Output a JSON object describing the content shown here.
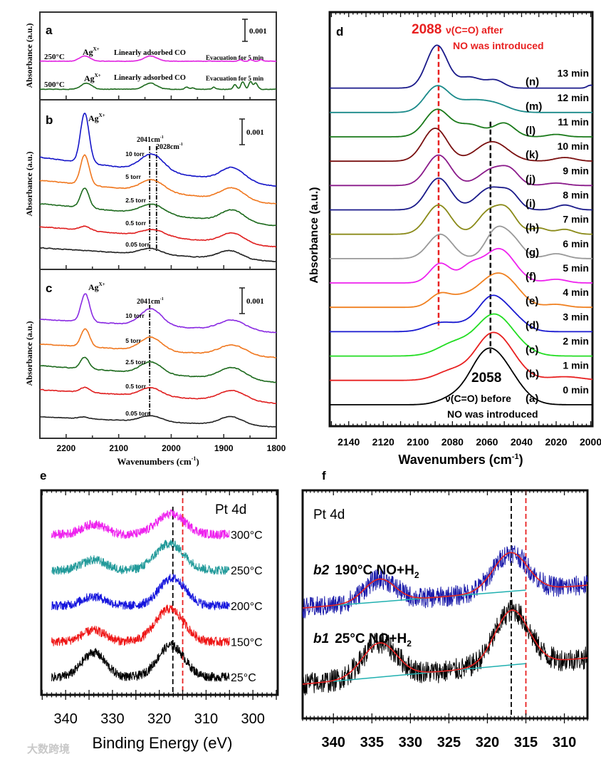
{
  "watermark": "大数跨境",
  "chart_data": [
    {
      "panel": "a",
      "type": "line",
      "title": "a",
      "ylabel": "Absorbance (a.u.)",
      "xlabel": "",
      "xlim": [
        2250,
        1800
      ],
      "ylim": [
        0,
        1
      ],
      "scale_bar": "0.001",
      "annotations": {
        "ag": "Ag",
        "ag_sup": "X+",
        "co": "Linearly adsorbed CO",
        "evac": "Evacuation for 5 min",
        "ag2": "Ag",
        "ag2_sup": "X+",
        "co2": "Linearly adsorbed CO",
        "evac2": "Evacuation for 5 min"
      },
      "series": [
        {
          "name": "250°C",
          "color": "#e020e0",
          "offset": 0.44,
          "noise": 0.004,
          "drift": 0,
          "peaks": [
            [
              2166,
              0.06,
              10
            ],
            [
              2041,
              0.06,
              12
            ],
            [
              1870,
              0.02,
              3
            ],
            [
              1850,
              0.02,
              3
            ],
            [
              1830,
              0.02,
              3
            ]
          ]
        },
        {
          "name": "500°C",
          "color": "#1e6b1e",
          "offset": 0.12,
          "noise": 0.006,
          "drift": 0,
          "peaks": [
            [
              2163,
              0.07,
              10
            ],
            [
              2041,
              0.07,
              12
            ],
            [
              1972,
              0.03,
              3
            ],
            [
              1960,
              0.02,
              3
            ],
            [
              1920,
              0.03,
              3
            ],
            [
              1880,
              0.06,
              3
            ],
            [
              1865,
              0.1,
              3
            ],
            [
              1850,
              0.1,
              3
            ],
            [
              1840,
              0.08,
              3
            ]
          ]
        }
      ]
    },
    {
      "panel": "b",
      "type": "line",
      "title": "b",
      "ylabel": "Absorbance (a.u.)",
      "xlabel": "",
      "xlim": [
        2250,
        1800
      ],
      "ylim": [
        0,
        1
      ],
      "scale_bar": "0.001",
      "annotations": {
        "ag": "Ag",
        "ag_sup": "X+",
        "l1": "2041cm",
        "l1_sup": "-1",
        "l2": "2028cm",
        "l2_sup": "-1"
      },
      "markers": [
        {
          "x": 2041,
          "style": "dashdot",
          "color": "#000000"
        },
        {
          "x": 2028,
          "style": "dashdot",
          "color": "#000000"
        }
      ],
      "series": [
        {
          "name": "10 torr",
          "color": "#1515c8",
          "offset": 0.66,
          "noise": 0.004,
          "drift": -0.17,
          "peaks": [
            [
              2166,
              0.3,
              8
            ],
            [
              2038,
              0.1,
              22
            ],
            [
              1885,
              0.08,
              22
            ]
          ]
        },
        {
          "name": "5 torr",
          "color": "#f07820",
          "offset": 0.525,
          "noise": 0.004,
          "drift": -0.14,
          "peaks": [
            [
              2166,
              0.18,
              8
            ],
            [
              2038,
              0.07,
              22
            ],
            [
              1885,
              0.07,
              22
            ]
          ]
        },
        {
          "name": "2.5 torr",
          "color": "#1e6b1e",
          "offset": 0.387,
          "noise": 0.004,
          "drift": -0.13,
          "peaks": [
            [
              2166,
              0.12,
              8
            ],
            [
              2038,
              0.06,
              22
            ],
            [
              1885,
              0.07,
              22
            ]
          ]
        },
        {
          "name": "0.5 torr",
          "color": "#e02020",
          "offset": 0.252,
          "noise": 0.004,
          "drift": -0.12,
          "peaks": [
            [
              2166,
              0.025,
              10
            ],
            [
              2035,
              0.04,
              22
            ],
            [
              1885,
              0.06,
              22
            ]
          ]
        },
        {
          "name": "0.05 torr",
          "color": "#222222",
          "offset": 0.126,
          "noise": 0.004,
          "drift": -0.08,
          "peaks": [
            [
              2040,
              0.035,
              20
            ],
            [
              1890,
              0.05,
              22
            ]
          ]
        }
      ]
    },
    {
      "panel": "c",
      "type": "line",
      "title": "c",
      "ylabel": "Absorbance (a.u.)",
      "xlabel": "Wavenumbers (cm",
      "xlabel_sup": "-1",
      "xlabel_end": ")",
      "xlim": [
        2250,
        1800
      ],
      "ylim": [
        0,
        1
      ],
      "scale_bar": "0.001",
      "xticks": [
        2200,
        2100,
        2000,
        1900,
        1800
      ],
      "annotations": {
        "ag": "Ag",
        "ag_sup": "X+",
        "l1": "2041cm",
        "l1_sup": "-1"
      },
      "markers": [
        {
          "x": 2041,
          "style": "dashdot",
          "color": "#000000"
        }
      ],
      "series": [
        {
          "name": "10 torr",
          "color": "#8a2be2",
          "offset": 0.705,
          "noise": 0.004,
          "drift": -0.08,
          "peaks": [
            [
              2165,
              0.17,
              8
            ],
            [
              2040,
              0.1,
              20
            ],
            [
              1885,
              0.06,
              25
            ]
          ]
        },
        {
          "name": "5 torr",
          "color": "#f07820",
          "offset": 0.557,
          "noise": 0.004,
          "drift": -0.08,
          "peaks": [
            [
              2165,
              0.11,
              8
            ],
            [
              2040,
              0.08,
              20
            ],
            [
              1885,
              0.06,
              25
            ]
          ]
        },
        {
          "name": "2.5 torr",
          "color": "#1e6b1e",
          "offset": 0.43,
          "noise": 0.004,
          "drift": -0.1,
          "peaks": [
            [
              2166,
              0.07,
              8
            ],
            [
              2040,
              0.07,
              20
            ],
            [
              1885,
              0.07,
              25
            ]
          ]
        },
        {
          "name": "0.5 torr",
          "color": "#e02020",
          "offset": 0.287,
          "noise": 0.004,
          "drift": -0.08,
          "peaks": [
            [
              2166,
              0.03,
              9
            ],
            [
              2040,
              0.05,
              20
            ],
            [
              1885,
              0.06,
              25
            ]
          ]
        },
        {
          "name": "0.05 torr",
          "color": "#222222",
          "offset": 0.127,
          "noise": 0.003,
          "drift": -0.06,
          "peaks": [
            [
              2168,
              0.01,
              10
            ],
            [
              2040,
              0.035,
              20
            ],
            [
              1888,
              0.05,
              22
            ]
          ]
        }
      ]
    },
    {
      "panel": "d",
      "type": "line",
      "title": "d",
      "ylabel": "Absorbance (a.u.)",
      "xlabel": "Wavenumbers (cm",
      "xlabel_sup": "-1",
      "xlabel_end": ")",
      "xlim": [
        2151,
        1999
      ],
      "ylim": [
        0,
        17
      ],
      "xticks": [
        2140,
        2120,
        2100,
        2080,
        2060,
        2040,
        2020,
        2000
      ],
      "annotations": {
        "after_value": "2088",
        "after_text": "ν(C=O) after",
        "after_text2": "NO was introduced",
        "before_value": "2058",
        "before_text": "ν(C=O) before",
        "before_text2": "NO was introduced"
      },
      "markers": [
        {
          "x": 2088,
          "style": "dashed",
          "color": "#e82020",
          "from": 4.0,
          "to": 15.6
        },
        {
          "x": 2058,
          "style": "dashed",
          "color": "#000000",
          "from": 3.0,
          "to": 12.5
        }
      ],
      "series": [
        {
          "name": "(a)",
          "time": "0 min",
          "color": "#000000",
          "offset": 0.88,
          "peaks": [
            [
              2062,
              1.6,
              9
            ],
            [
              2050,
              1.2,
              10
            ],
            [
              2080,
              0.25,
              8
            ]
          ]
        },
        {
          "name": "(b)",
          "time": "1 min",
          "color": "#e82020",
          "offset": 1.88,
          "peaks": [
            [
              2059,
              1.5,
              9
            ],
            [
              2048,
              0.8,
              9
            ],
            [
              2080,
              0.4,
              9
            ],
            [
              2015,
              0.15,
              10
            ]
          ]
        },
        {
          "name": "(c)",
          "time": "2 min",
          "color": "#22dd22",
          "offset": 2.88,
          "peaks": [
            [
              2058,
              1.2,
              9
            ],
            [
              2048,
              0.7,
              10
            ],
            [
              2078,
              0.55,
              10
            ]
          ]
        },
        {
          "name": "(d)",
          "time": "3 min",
          "color": "#1a1ad0",
          "offset": 3.88,
          "peaks": [
            [
              2058,
              1.1,
              7
            ],
            [
              2047,
              0.7,
              8
            ],
            [
              2087,
              0.35,
              8
            ],
            [
              2070,
              0.3,
              8
            ]
          ]
        },
        {
          "name": "(e)",
          "time": "4 min",
          "color": "#f08020",
          "offset": 4.88,
          "peaks": [
            [
              2050,
              1.15,
              9
            ],
            [
              2062,
              0.6,
              8
            ],
            [
              2087,
              0.55,
              6
            ],
            [
              2075,
              0.3,
              6
            ],
            [
              2020,
              0.12,
              6
            ]
          ]
        },
        {
          "name": "(f)",
          "time": "5 min",
          "color": "#ee22ee",
          "offset": 5.88,
          "peaks": [
            [
              2053,
              1.4,
              9
            ],
            [
              2087,
              0.8,
              6
            ],
            [
              2070,
              0.6,
              6
            ],
            [
              2020,
              0.15,
              6
            ]
          ]
        },
        {
          "name": "(g)",
          "time": "6 min",
          "color": "#999999",
          "offset": 6.88,
          "peaks": [
            [
              2087,
              1.0,
              7
            ],
            [
              2055,
              1.1,
              6
            ],
            [
              2045,
              0.7,
              6
            ],
            [
              2020,
              0.2,
              6
            ]
          ]
        },
        {
          "name": "(h)",
          "time": "7 min",
          "color": "#8a8a18",
          "offset": 7.88,
          "peaks": [
            [
              2088,
              1.2,
              7
            ],
            [
              2060,
              0.8,
              6
            ],
            [
              2049,
              1.0,
              6
            ],
            [
              2030,
              0.25,
              5
            ],
            [
              2015,
              0.2,
              5
            ]
          ]
        },
        {
          "name": "(i)",
          "time": "8 min",
          "color": "#1a1a8a",
          "offset": 8.88,
          "peaks": [
            [
              2088,
              1.3,
              7
            ],
            [
              2058,
              0.9,
              8
            ],
            [
              2046,
              0.5,
              5
            ],
            [
              2015,
              0.2,
              5
            ]
          ]
        },
        {
          "name": "(j)",
          "time": "9 min",
          "color": "#8a1a8a",
          "offset": 9.88,
          "peaks": [
            [
              2088,
              1.25,
              7
            ],
            [
              2056,
              0.7,
              8
            ],
            [
              2046,
              0.4,
              5
            ],
            [
              2020,
              0.1,
              6
            ]
          ]
        },
        {
          "name": "(k)",
          "time": "10 min",
          "color": "#7a1010",
          "offset": 10.88,
          "peaks": [
            [
              2090,
              1.35,
              7
            ],
            [
              2057,
              0.8,
              9
            ],
            [
              2015,
              0.15,
              6
            ]
          ]
        },
        {
          "name": "(l)",
          "time": "11 min",
          "color": "#1a7a1a",
          "offset": 11.88,
          "peaks": [
            [
              2089,
              1.1,
              7
            ],
            [
              2070,
              0.5,
              8
            ],
            [
              2050,
              0.55,
              6
            ],
            [
              2020,
              0.1,
              5
            ]
          ]
        },
        {
          "name": "(m)",
          "time": "12 min",
          "color": "#1a8a8a",
          "offset": 12.88,
          "peaks": [
            [
              2089,
              1.05,
              7
            ],
            [
              2070,
              0.45,
              9
            ],
            [
              2055,
              0.3,
              8
            ]
          ]
        },
        {
          "name": "(n)",
          "time": "13 min",
          "color": "#1a1a8a",
          "offset": 13.88,
          "peaks": [
            [
              2089,
              1.75,
              6
            ],
            [
              2070,
              0.45,
              7
            ],
            [
              2055,
              0.3,
              5
            ],
            [
              2000,
              0.12,
              2
            ]
          ]
        }
      ]
    },
    {
      "panel": "e",
      "type": "line",
      "title": "e",
      "xlabel": "Binding Energy (eV)",
      "ylabel": "",
      "xlim": [
        345.2,
        294.7
      ],
      "ylim": [
        0,
        10
      ],
      "xticks": [
        340,
        330,
        320,
        310,
        300
      ],
      "annotations": {
        "label": "Pt 4d"
      },
      "markers": [
        {
          "x": 317.1,
          "style": "dashed",
          "color": "#000000",
          "from": 0,
          "to": 9.2
        },
        {
          "x": 315.0,
          "style": "dashed",
          "color": "#e82020",
          "from": 0,
          "to": 10
        }
      ],
      "series": [
        {
          "name": "300°C",
          "color": "#ee22ee",
          "offset": 7.84,
          "noise": 0.22,
          "peaks": [
            [
              334,
              0.5,
              2.5
            ],
            [
              317.5,
              1.0,
              3
            ]
          ]
        },
        {
          "name": "250°C",
          "color": "#229a9a",
          "offset": 6.1,
          "noise": 0.22,
          "peaks": [
            [
              334,
              0.5,
              2.5
            ],
            [
              317.8,
              1.3,
              3
            ]
          ]
        },
        {
          "name": "200°C",
          "color": "#1515dd",
          "offset": 4.36,
          "noise": 0.22,
          "peaks": [
            [
              334,
              0.45,
              2.5
            ],
            [
              317.2,
              1.35,
              2.8
            ]
          ]
        },
        {
          "name": "150°C",
          "color": "#ee1515",
          "offset": 2.6,
          "noise": 0.22,
          "peaks": [
            [
              334,
              0.55,
              2.5
            ],
            [
              317.8,
              1.6,
              3
            ]
          ]
        },
        {
          "name": "25°C",
          "color": "#000000",
          "offset": 0.87,
          "noise": 0.22,
          "peaks": [
            [
              334,
              1.2,
              2.5
            ],
            [
              317.5,
              1.55,
              2.8
            ]
          ]
        }
      ]
    },
    {
      "panel": "f",
      "type": "line",
      "title": "f",
      "xlabel": "",
      "ylabel": "",
      "xlim": [
        344,
        307
      ],
      "ylim": [
        0,
        10
      ],
      "xticks": [
        340,
        335,
        330,
        325,
        320,
        315,
        310
      ],
      "annotations": {
        "label": "Pt 4d"
      },
      "markers": [
        {
          "x": 316.9,
          "style": "dashed",
          "color": "#000000",
          "from": 0,
          "to": 10
        },
        {
          "x": 315.0,
          "style": "dashed",
          "color": "#e82020",
          "from": 0,
          "to": 10
        }
      ],
      "series": [
        {
          "name": "b2",
          "label": "190°C NO+H",
          "sub": "2",
          "color": "#1a1aaa",
          "fit_color": "#e82020",
          "bg_color": "#20b0b0",
          "offset": 4.94,
          "noise": 0.45,
          "background": [
            -0.1,
            0.9
          ],
          "peaks": [
            [
              334,
              1.0,
              2.0
            ],
            [
              317,
              1.7,
              2.2
            ]
          ]
        },
        {
          "name": "b1",
          "label": "25°C NO+H",
          "sub": "2",
          "color": "#000000",
          "fit_color": "#e82020",
          "bg_color": "#20b0b0",
          "offset": 1.5,
          "noise": 0.5,
          "background": [
            0,
            1.15
          ],
          "peaks": [
            [
              334,
              1.5,
              2.2
            ],
            [
              316.8,
              2.4,
              2.2
            ]
          ]
        }
      ]
    }
  ]
}
